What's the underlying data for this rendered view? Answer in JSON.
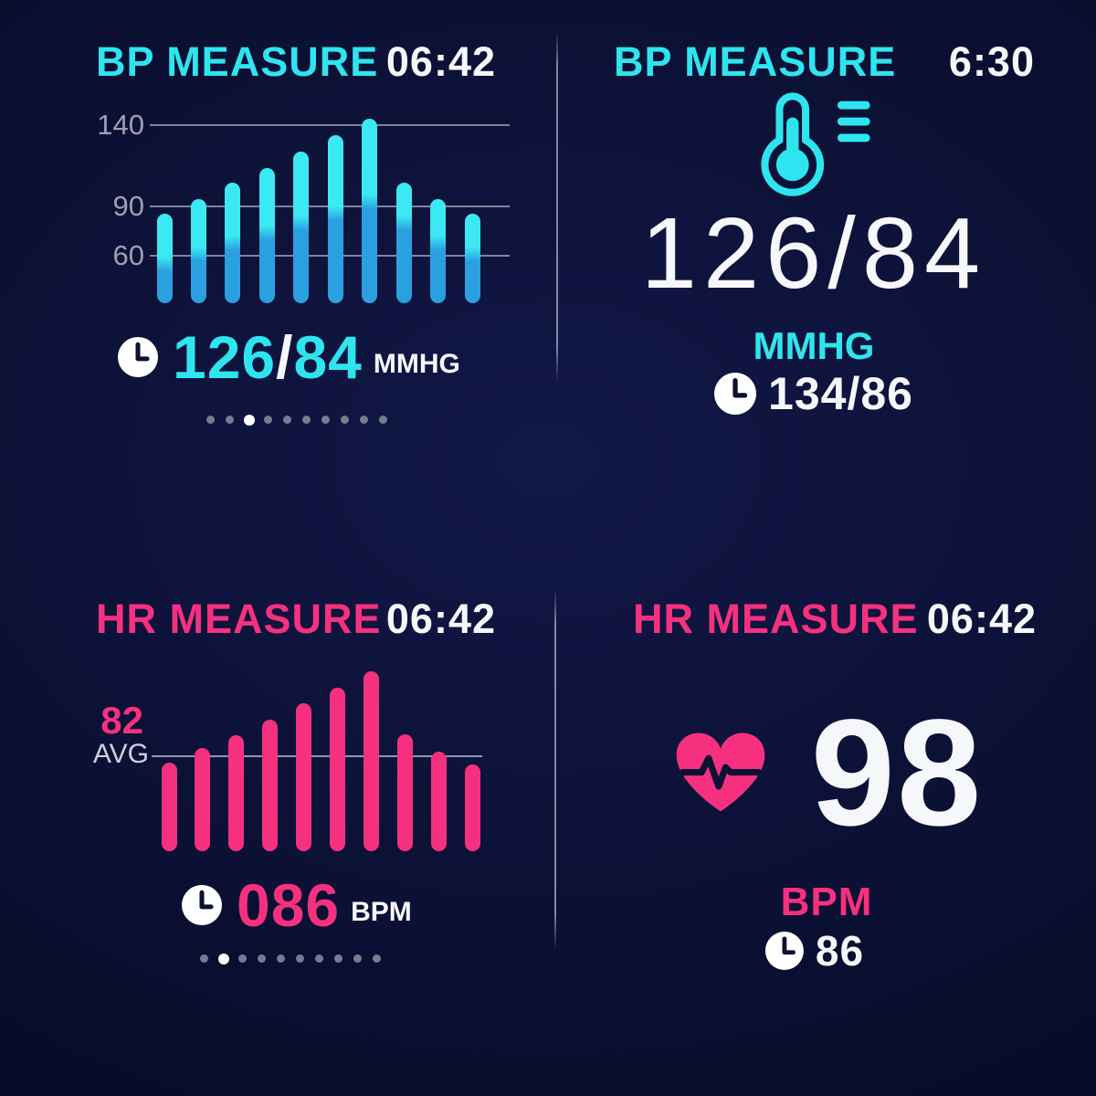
{
  "colors": {
    "background": "#0b1034",
    "cyan": "#2ee5ef",
    "pink": "#f5317f",
    "white": "#f6f7fb",
    "bar_cyan_top": "#3ce9f2",
    "bar_blue_bottom": "#2aa0e0",
    "grid_gray": "#9298ac",
    "dot_inactive": "#777c90",
    "dot_active": "#ffffff"
  },
  "panels": {
    "bp_chart": {
      "title": "BP MEASURE",
      "time": "06:42",
      "reading": {
        "systolic": "126",
        "separator": "/",
        "diastolic": "84",
        "unit": "MMHG"
      },
      "pager": {
        "count": 10,
        "active_index": 2
      }
    },
    "bp_big": {
      "title": "BP MEASURE",
      "time": "6:30",
      "value": "126/84",
      "unit": "MMHG",
      "previous": "134/86"
    },
    "hr_chart": {
      "title": "HR MEASURE",
      "time": "06:42",
      "avg_value": "82",
      "avg_label": "AVG",
      "reading": {
        "value": "086",
        "unit": "BPM"
      },
      "pager": {
        "count": 10,
        "active_index": 1
      }
    },
    "hr_big": {
      "title": "HR MEASURE",
      "time": "06:42",
      "value": "98",
      "unit": "BPM",
      "previous": "86"
    }
  },
  "chart_data": [
    {
      "type": "bar",
      "panel": "bp_chart",
      "title": "BP MEASURE",
      "x": [
        1,
        2,
        3,
        4,
        5,
        6,
        7,
        8,
        9,
        10
      ],
      "series": [
        {
          "name": "systolic_bar_top_mmHg",
          "values": [
            86,
            95,
            105,
            114,
            124,
            134,
            144,
            105,
            95,
            86
          ]
        },
        {
          "name": "diastolic_color_split_mmHg",
          "values": [
            55,
            61,
            68,
            74,
            80,
            86,
            93,
            80,
            68,
            61
          ]
        }
      ],
      "yticks": [
        140,
        90,
        60
      ],
      "ylabel": "mmHg",
      "bar_base": 30,
      "grid": true,
      "legend": "none",
      "current_reading": "126/84 MMHG"
    },
    {
      "type": "bar",
      "panel": "hr_chart",
      "title": "HR MEASURE",
      "x": [
        1,
        2,
        3,
        4,
        5,
        6,
        7,
        8,
        9,
        10
      ],
      "values": [
        78,
        87,
        95,
        105,
        115,
        125,
        135,
        96,
        85,
        77
      ],
      "average": 82,
      "average_label": "AVG",
      "ylabel": "bpm",
      "bar_base": 23,
      "grid": false,
      "legend": "none",
      "current_reading": "086 BPM"
    }
  ]
}
